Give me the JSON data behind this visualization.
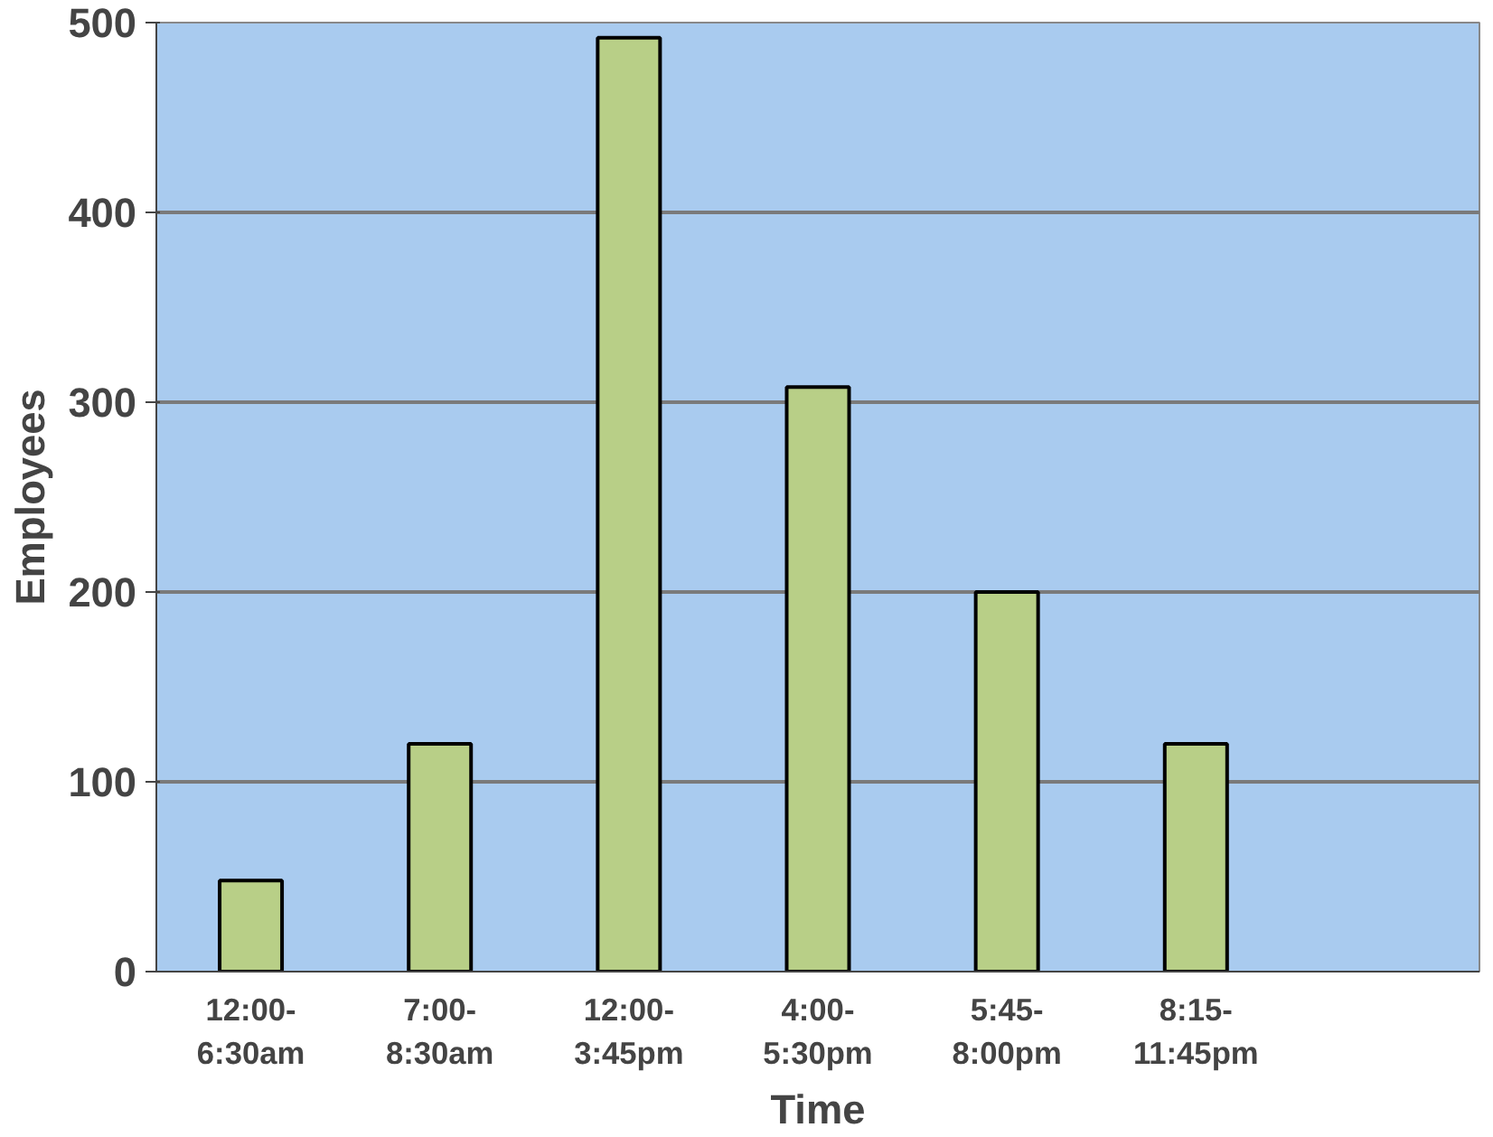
{
  "chart_data": {
    "type": "bar",
    "xlabel": "Time",
    "ylabel": "Employees",
    "categories": [
      "12:00-6:30am",
      "7:00-8:30am",
      "12:00-3:45pm",
      "4:00-5:30pm",
      "5:45-8:00pm",
      "8:15-11:45pm",
      null
    ],
    "values": [
      48,
      120,
      492,
      308,
      200,
      120,
      null
    ],
    "color": "#b8cf87",
    "ylim": [
      0,
      500
    ],
    "yticks": [
      0,
      100,
      200,
      300,
      400,
      500
    ],
    "grid": "y"
  }
}
